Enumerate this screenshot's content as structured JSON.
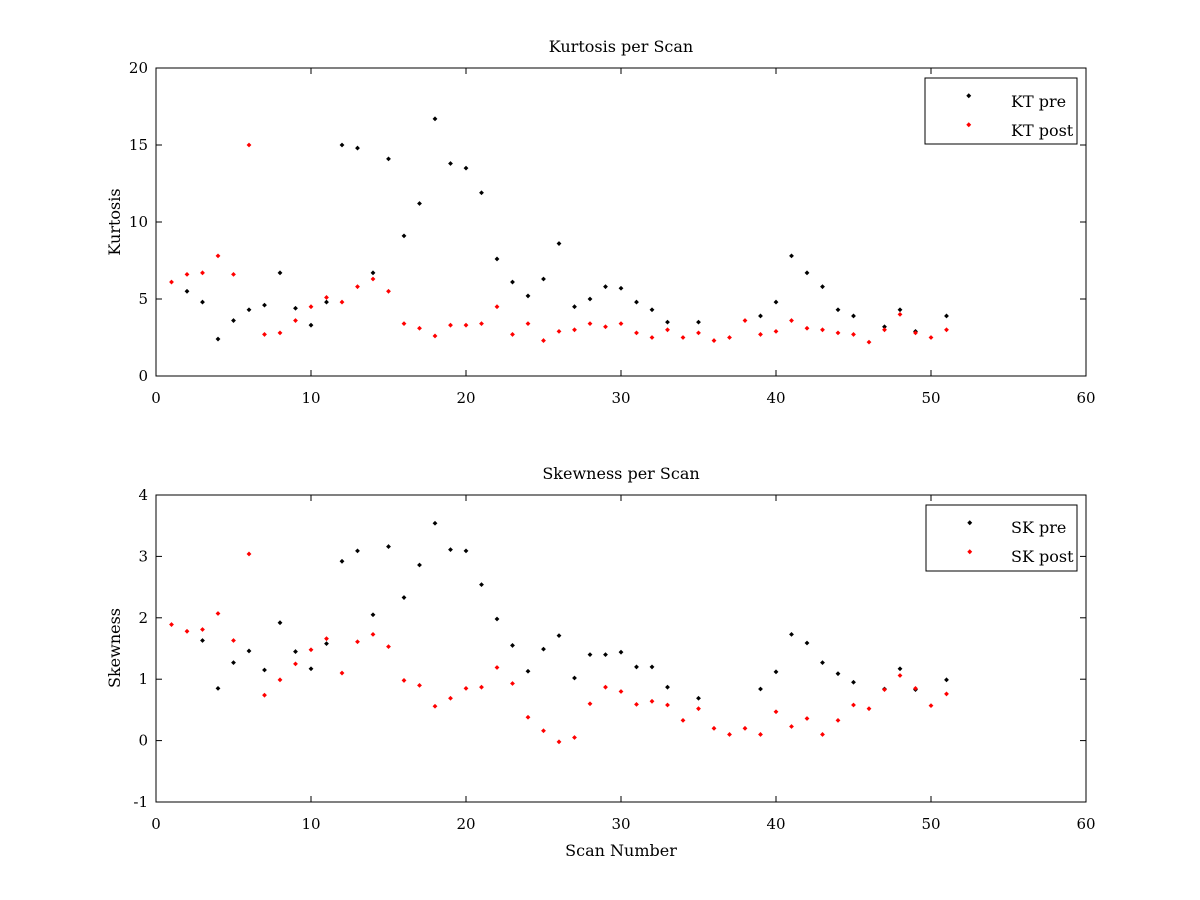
{
  "chart_data": [
    {
      "type": "scatter",
      "title": "Kurtosis per Scan",
      "xlabel": "",
      "ylabel": "Kurtosis",
      "xlim": [
        0,
        60
      ],
      "ylim": [
        0,
        20
      ],
      "xticks": [
        0,
        10,
        20,
        30,
        40,
        50,
        60
      ],
      "yticks": [
        0,
        5,
        10,
        15,
        20
      ],
      "legend": "top-right",
      "grid": false,
      "series": [
        {
          "name": "KT pre",
          "color": "#000000",
          "x": [
            2,
            3,
            4,
            5,
            6,
            7,
            8,
            9,
            10,
            11,
            12,
            13,
            14,
            15,
            16,
            17,
            18,
            19,
            20,
            21,
            22,
            23,
            24,
            25,
            26,
            27,
            28,
            29,
            30,
            31,
            32,
            33,
            35,
            39,
            40,
            41,
            42,
            43,
            44,
            45,
            47,
            48,
            49,
            51
          ],
          "y": [
            5.5,
            4.8,
            2.4,
            3.6,
            4.3,
            4.6,
            6.7,
            4.4,
            3.3,
            4.8,
            15.0,
            14.8,
            6.7,
            14.1,
            9.1,
            11.2,
            16.7,
            13.8,
            13.5,
            11.9,
            7.6,
            6.1,
            5.2,
            6.3,
            8.6,
            4.5,
            5.0,
            5.8,
            5.7,
            4.8,
            4.3,
            3.5,
            3.5,
            3.9,
            4.8,
            7.8,
            6.7,
            5.8,
            4.3,
            3.9,
            3.2,
            4.3,
            2.9,
            3.9
          ]
        },
        {
          "name": "KT post",
          "color": "#ff0000",
          "x": [
            1,
            2,
            3,
            4,
            5,
            6,
            7,
            8,
            9,
            10,
            11,
            12,
            13,
            14,
            15,
            16,
            17,
            18,
            19,
            20,
            21,
            22,
            23,
            24,
            25,
            26,
            27,
            28,
            29,
            30,
            31,
            32,
            33,
            34,
            35,
            36,
            37,
            38,
            39,
            40,
            41,
            42,
            43,
            44,
            45,
            46,
            47,
            48,
            49,
            50,
            51
          ],
          "y": [
            6.1,
            6.6,
            6.7,
            7.8,
            6.6,
            15.0,
            2.7,
            2.8,
            3.6,
            4.5,
            5.1,
            4.8,
            5.8,
            6.3,
            5.5,
            3.4,
            3.1,
            2.6,
            3.3,
            3.3,
            3.4,
            4.5,
            2.7,
            3.4,
            2.3,
            2.9,
            3.0,
            3.4,
            3.2,
            3.4,
            2.8,
            2.5,
            3.0,
            2.5,
            2.8,
            2.3,
            2.5,
            3.6,
            2.7,
            2.9,
            3.6,
            3.1,
            3.0,
            2.8,
            2.7,
            2.2,
            3.0,
            4.0,
            2.8,
            2.5,
            3.0
          ]
        }
      ]
    },
    {
      "type": "scatter",
      "title": "Skewness per Scan",
      "xlabel": "Scan Number",
      "ylabel": "Skewness",
      "xlim": [
        0,
        60
      ],
      "ylim": [
        -1,
        4
      ],
      "xticks": [
        0,
        10,
        20,
        30,
        40,
        50,
        60
      ],
      "yticks": [
        -1,
        0,
        1,
        2,
        3,
        4
      ],
      "legend": "top-right",
      "grid": false,
      "series": [
        {
          "name": "SK pre",
          "color": "#000000",
          "x": [
            3,
            4,
            5,
            6,
            7,
            8,
            9,
            10,
            11,
            12,
            13,
            14,
            15,
            16,
            17,
            18,
            19,
            20,
            21,
            22,
            23,
            24,
            25,
            26,
            27,
            28,
            29,
            30,
            31,
            32,
            33,
            35,
            39,
            40,
            41,
            42,
            43,
            44,
            45,
            47,
            48,
            49,
            51
          ],
          "y": [
            1.63,
            0.85,
            1.27,
            1.46,
            1.15,
            1.92,
            1.45,
            1.17,
            1.58,
            2.92,
            3.09,
            2.05,
            3.16,
            2.33,
            2.86,
            3.54,
            3.11,
            3.09,
            2.54,
            1.98,
            1.55,
            1.13,
            1.49,
            1.71,
            1.02,
            1.4,
            1.4,
            1.44,
            1.2,
            1.2,
            0.87,
            0.69,
            0.84,
            1.12,
            1.73,
            1.59,
            1.27,
            1.09,
            0.95,
            0.84,
            1.17,
            0.83,
            0.99
          ]
        },
        {
          "name": "SK post",
          "color": "#ff0000",
          "x": [
            1,
            2,
            3,
            4,
            5,
            6,
            7,
            8,
            9,
            10,
            11,
            12,
            13,
            14,
            15,
            16,
            17,
            18,
            19,
            20,
            21,
            22,
            23,
            24,
            25,
            26,
            27,
            28,
            29,
            30,
            31,
            32,
            33,
            34,
            35,
            36,
            37,
            38,
            39,
            40,
            41,
            42,
            43,
            44,
            45,
            46,
            47,
            48,
            49,
            50,
            51
          ],
          "y": [
            1.89,
            1.78,
            1.81,
            2.07,
            1.63,
            3.04,
            0.74,
            0.99,
            1.25,
            1.48,
            1.66,
            1.1,
            1.61,
            1.73,
            1.53,
            0.98,
            0.9,
            0.56,
            0.69,
            0.85,
            0.87,
            1.19,
            0.93,
            0.38,
            0.16,
            -0.02,
            0.05,
            0.6,
            0.87,
            0.8,
            0.59,
            0.64,
            0.58,
            0.33,
            0.52,
            0.2,
            0.1,
            0.2,
            0.1,
            0.47,
            0.23,
            0.36,
            0.1,
            0.33,
            0.58,
            0.52,
            0.83,
            1.06,
            0.85,
            0.57,
            0.76
          ]
        }
      ]
    }
  ]
}
